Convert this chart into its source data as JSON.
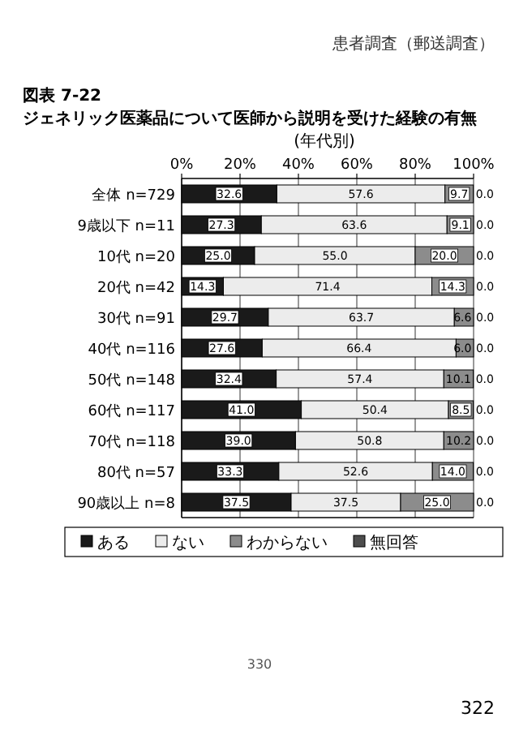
{
  "chart_data": {
    "type": "bar",
    "orientation": "horizontal",
    "stacked": true,
    "title": "図表 7-22　ジェネリック医薬品について医師から説明を受けた経験の有無",
    "subtitle": "(年代別)",
    "categories": [
      "全体 n=729",
      "9歳以下 n=11",
      "10代 n=20",
      "20代 n=42",
      "30代 n=91",
      "40代 n=116",
      "50代 n=148",
      "60代 n=117",
      "70代 n=118",
      "80代 n=57",
      "90歳以上 n=8"
    ],
    "series": [
      {
        "name": "ある",
        "color": "#1a1a1a",
        "values": [
          32.6,
          27.3,
          25.0,
          14.3,
          29.7,
          27.6,
          32.4,
          41.0,
          39.0,
          33.3,
          37.5
        ],
        "value_labels": [
          "32.6",
          "27.3",
          "25.0",
          "14.3",
          "29.7",
          "27.6",
          "32.4",
          "41.0",
          "39.0",
          "33.3",
          "37.5"
        ]
      },
      {
        "name": "ない",
        "color": "#ececec",
        "values": [
          57.6,
          63.6,
          55.0,
          71.4,
          63.7,
          66.4,
          57.4,
          50.4,
          50.8,
          52.6,
          37.5
        ],
        "value_labels": [
          "57.6",
          "63.6",
          "55.0",
          "71.4",
          "63.7",
          "66.4",
          "57.4",
          "50.4",
          "50.8",
          "52.6",
          "37.5"
        ]
      },
      {
        "name": "わからない",
        "color": "#8c8c8c",
        "values": [
          9.7,
          9.1,
          20.0,
          14.3,
          6.6,
          6.0,
          10.1,
          8.5,
          10.2,
          14.0,
          25.0
        ],
        "value_labels": [
          "9.7",
          "9.1",
          "20.0",
          "14.3",
          "6.6",
          "6.0",
          "10.1",
          "8.5",
          "10.2",
          "14.0",
          "25.0"
        ]
      },
      {
        "name": "無回答",
        "color": "#4d4d4d",
        "values": [
          0.0,
          0.0,
          0.0,
          0.0,
          0.0,
          0.0,
          0.0,
          0.0,
          0.0,
          0.0,
          0.0
        ],
        "value_labels": [
          "0.0",
          "0.0",
          "0.0",
          "0.0",
          "0.0",
          "0.0",
          "0.0",
          "0.0",
          "0.0",
          "0.0",
          "0.0"
        ]
      }
    ],
    "xlim": [
      0,
      100
    ],
    "xticks": [
      {
        "value": 0,
        "label": "0%"
      },
      {
        "value": 20,
        "label": "20%"
      },
      {
        "value": 40,
        "label": "40%"
      },
      {
        "value": 60,
        "label": "60%"
      },
      {
        "value": 80,
        "label": "80%"
      },
      {
        "value": 100,
        "label": "100%"
      }
    ],
    "grid": "x",
    "legend": "bottom",
    "annotations": [
      "患者調査（郵送調査）",
      "330",
      "322"
    ]
  }
}
